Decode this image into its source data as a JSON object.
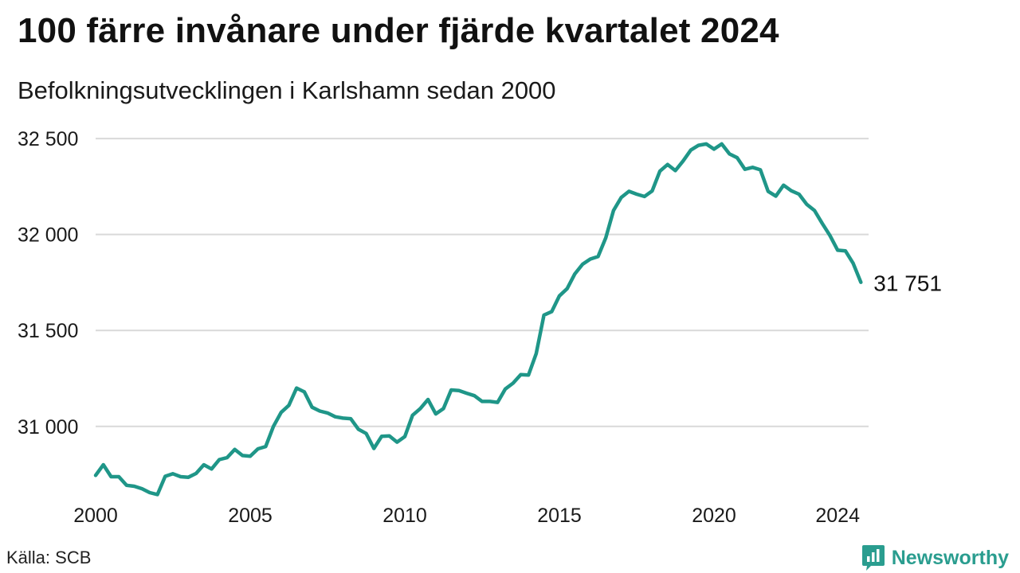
{
  "title": "100 färre invånare under fjärde kvartalet 2024",
  "subtitle": "Befolkningsutvecklingen i Karlshamn sedan 2000",
  "source": "Källa: SCB",
  "brand": {
    "name": "Newsworthy",
    "color": "#2a9d8f",
    "icon": "bar-chart-bubble-icon"
  },
  "chart_data": {
    "type": "line",
    "title": "100 färre invånare under fjärde kvartalet 2024",
    "subtitle": "Befolkningsutvecklingen i Karlshamn sedan 2000",
    "xlim": [
      2000,
      2025
    ],
    "ylim": [
      30630,
      32600
    ],
    "grid": true,
    "x_ticks": [
      2000,
      2005,
      2010,
      2015,
      2020,
      2024
    ],
    "x_tick_labels": [
      "2000",
      "2005",
      "2010",
      "2015",
      "2020",
      "2024"
    ],
    "y_ticks": [
      31000,
      31500,
      32000,
      32500
    ],
    "y_tick_labels": [
      "31 000",
      "31 500",
      "32 000",
      "32 500"
    ],
    "end_label": "31 751",
    "line_color": "#1f9688",
    "series": [
      {
        "x": [
          2000.0,
          2000.25,
          2000.5,
          2000.75,
          2001.0,
          2001.25,
          2001.5,
          2001.75,
          2002.0,
          2002.25,
          2002.5,
          2002.75,
          2003.0,
          2003.25,
          2003.5,
          2003.75,
          2004.0,
          2004.25,
          2004.5,
          2004.75,
          2005.0,
          2005.25,
          2005.5,
          2005.75,
          2006.0,
          2006.25,
          2006.5,
          2006.75,
          2007.0,
          2007.25,
          2007.5,
          2007.75,
          2008.0,
          2008.25,
          2008.5,
          2008.75,
          2009.0,
          2009.25,
          2009.5,
          2009.75,
          2010.0,
          2010.25,
          2010.5,
          2010.75,
          2011.0,
          2011.25,
          2011.5,
          2011.75,
          2012.0,
          2012.25,
          2012.5,
          2012.75,
          2013.0,
          2013.25,
          2013.5,
          2013.75,
          2014.0,
          2014.25,
          2014.5,
          2014.75,
          2015.0,
          2015.25,
          2015.5,
          2015.75,
          2016.0,
          2016.25,
          2016.5,
          2016.75,
          2017.0,
          2017.25,
          2017.5,
          2017.75,
          2018.0,
          2018.25,
          2018.5,
          2018.75,
          2019.0,
          2019.25,
          2019.5,
          2019.75,
          2020.0,
          2020.25,
          2020.5,
          2020.75,
          2021.0,
          2021.25,
          2021.5,
          2021.75,
          2022.0,
          2022.25,
          2022.5,
          2022.75,
          2023.0,
          2023.25,
          2023.5,
          2023.75,
          2024.0,
          2024.25,
          2024.5,
          2024.75
        ],
        "values": [
          30745,
          30800,
          30738,
          30738,
          30693,
          30688,
          30675,
          30655,
          30645,
          30740,
          30753,
          30738,
          30735,
          30755,
          30800,
          30778,
          30827,
          30837,
          30880,
          30848,
          30845,
          30883,
          30895,
          31000,
          31073,
          31110,
          31200,
          31180,
          31100,
          31080,
          31070,
          31050,
          31043,
          31040,
          30985,
          30963,
          30885,
          30948,
          30950,
          30918,
          30947,
          31058,
          31093,
          31140,
          31065,
          31093,
          31190,
          31187,
          31173,
          31160,
          31130,
          31130,
          31125,
          31195,
          31225,
          31270,
          31268,
          31380,
          31580,
          31598,
          31680,
          31718,
          31795,
          31845,
          31872,
          31885,
          31983,
          32125,
          32193,
          32225,
          32210,
          32198,
          32227,
          32330,
          32365,
          32333,
          32383,
          32440,
          32465,
          32472,
          32445,
          32472,
          32420,
          32400,
          32340,
          32350,
          32337,
          32225,
          32200,
          32257,
          32228,
          32210,
          32157,
          32125,
          32058,
          31995,
          31918,
          31915,
          31850,
          31751
        ]
      }
    ]
  }
}
